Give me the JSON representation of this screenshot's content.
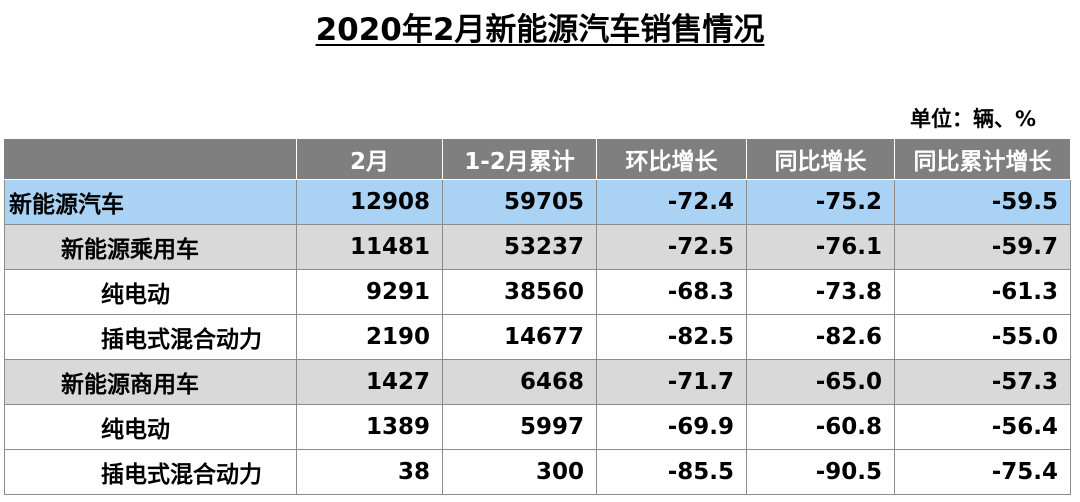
{
  "title": "2020年2月新能源汽车销售情况",
  "unit": "单位：辆、%",
  "table": {
    "headers": [
      "",
      "2月",
      "1-2月累计",
      "环比增长",
      "同比增长",
      "同比累计增长"
    ],
    "rows": [
      {
        "name": "新能源汽车",
        "level": 0,
        "values": [
          "12908",
          "59705",
          "-72.4",
          "-75.2",
          "-59.5"
        ]
      },
      {
        "name": "新能源乘用车",
        "level": 1,
        "values": [
          "11481",
          "53237",
          "-72.5",
          "-76.1",
          "-59.7"
        ]
      },
      {
        "name": "纯电动",
        "level": 2,
        "values": [
          "9291",
          "38560",
          "-68.3",
          "-73.8",
          "-61.3"
        ]
      },
      {
        "name": "插电式混合动力",
        "level": 2,
        "values": [
          "2190",
          "14677",
          "-82.5",
          "-82.6",
          "-55.0"
        ]
      },
      {
        "name": "新能源商用车",
        "level": 1,
        "values": [
          "1427",
          "6468",
          "-71.7",
          "-65.0",
          "-57.3"
        ]
      },
      {
        "name": "纯电动",
        "level": 2,
        "values": [
          "1389",
          "5997",
          "-69.9",
          "-60.8",
          "-56.4"
        ]
      },
      {
        "name": "插电式混合动力",
        "level": 2,
        "values": [
          "38",
          "300",
          "-85.5",
          "-90.5",
          "-75.4"
        ]
      }
    ]
  },
  "colors": {
    "header_bg": "#7f7f7f",
    "total_row_bg": "#a9d2f5",
    "subtotal_row_bg": "#d9d9d9",
    "detail_row_bg": "#ffffff"
  }
}
